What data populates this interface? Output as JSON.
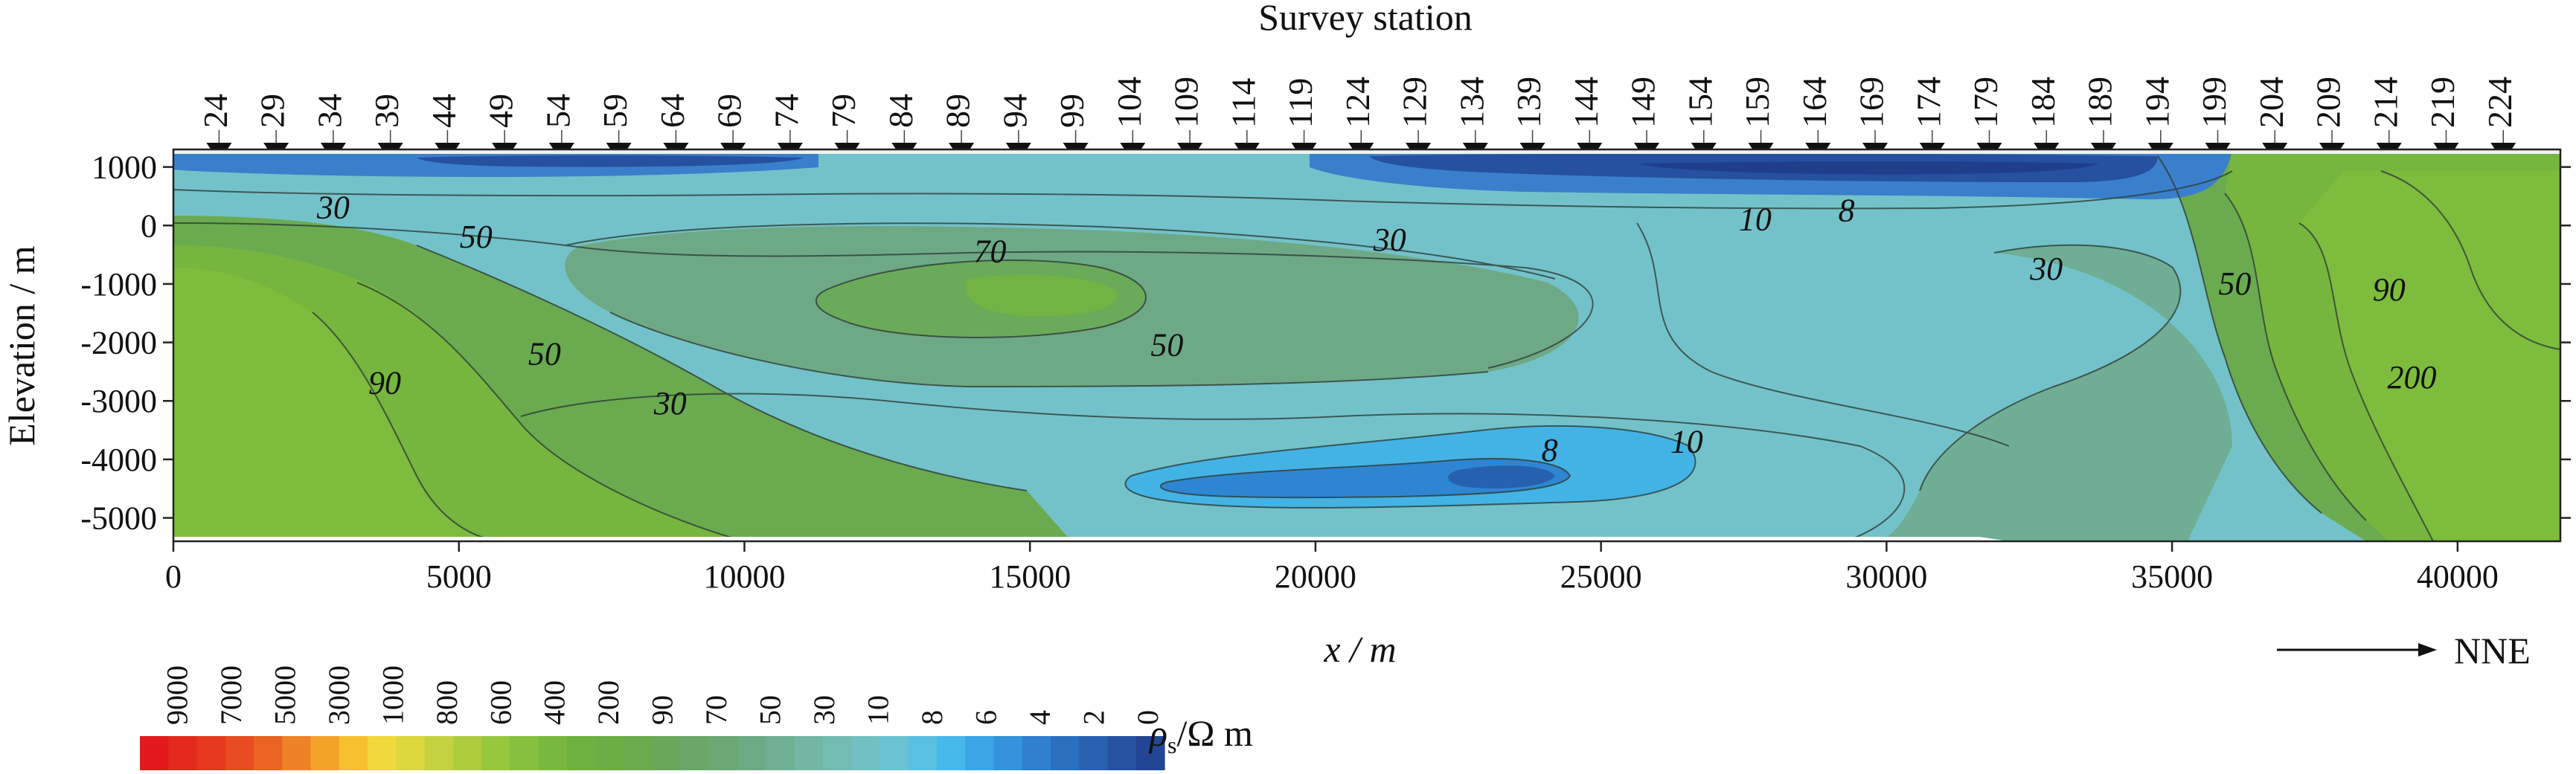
{
  "chart_data": {
    "type": "heatmap",
    "title": "Survey station",
    "xlabel": "x / m",
    "ylabel": "Elevation / m",
    "xlim": [
      0,
      41800
    ],
    "ylim": [
      -5400,
      1300
    ],
    "x_ticks": [
      0,
      5000,
      10000,
      15000,
      20000,
      25000,
      30000,
      35000,
      40000
    ],
    "y_ticks": [
      1000,
      0,
      -1000,
      -2000,
      -3000,
      -4000,
      -5000
    ],
    "direction_label": "NNE",
    "stations": [
      {
        "label": "24",
        "x": 800
      },
      {
        "label": "29",
        "x": 1800
      },
      {
        "label": "34",
        "x": 2800
      },
      {
        "label": "39",
        "x": 3800
      },
      {
        "label": "44",
        "x": 4800
      },
      {
        "label": "49",
        "x": 5800
      },
      {
        "label": "54",
        "x": 6800
      },
      {
        "label": "59",
        "x": 7800
      },
      {
        "label": "64",
        "x": 8800
      },
      {
        "label": "69",
        "x": 9800
      },
      {
        "label": "74",
        "x": 10800
      },
      {
        "label": "79",
        "x": 11800
      },
      {
        "label": "84",
        "x": 12800
      },
      {
        "label": "89",
        "x": 13800
      },
      {
        "label": "94",
        "x": 14800
      },
      {
        "label": "99",
        "x": 15800
      },
      {
        "label": "104",
        "x": 16800
      },
      {
        "label": "109",
        "x": 17800
      },
      {
        "label": "114",
        "x": 18800
      },
      {
        "label": "119",
        "x": 19800
      },
      {
        "label": "124",
        "x": 20800
      },
      {
        "label": "129",
        "x": 21800
      },
      {
        "label": "134",
        "x": 22800
      },
      {
        "label": "139",
        "x": 23800
      },
      {
        "label": "144",
        "x": 24800
      },
      {
        "label": "149",
        "x": 25800
      },
      {
        "label": "154",
        "x": 26800
      },
      {
        "label": "159",
        "x": 27800
      },
      {
        "label": "164",
        "x": 28800
      },
      {
        "label": "169",
        "x": 29800
      },
      {
        "label": "174",
        "x": 30800
      },
      {
        "label": "179",
        "x": 31800
      },
      {
        "label": "184",
        "x": 32800
      },
      {
        "label": "189",
        "x": 33800
      },
      {
        "label": "194",
        "x": 34800
      },
      {
        "label": "199",
        "x": 35800
      },
      {
        "label": "204",
        "x": 36800
      },
      {
        "label": "209",
        "x": 37800
      },
      {
        "label": "214",
        "x": 38800
      },
      {
        "label": "219",
        "x": 39800
      },
      {
        "label": "224",
        "x": 40800
      }
    ],
    "contour_labels": [
      {
        "text": "30",
        "x": 2800,
        "y": 300
      },
      {
        "text": "50",
        "x": 5300,
        "y": -200
      },
      {
        "text": "70",
        "x": 14300,
        "y": -450
      },
      {
        "text": "30",
        "x": 21300,
        "y": -250
      },
      {
        "text": "10",
        "x": 27700,
        "y": 100
      },
      {
        "text": "8",
        "x": 29300,
        "y": 250
      },
      {
        "text": "30",
        "x": 32800,
        "y": -750
      },
      {
        "text": "50",
        "x": 36100,
        "y": -1000
      },
      {
        "text": "90",
        "x": 38800,
        "y": -1100
      },
      {
        "text": "50",
        "x": 6500,
        "y": -2200
      },
      {
        "text": "50",
        "x": 17400,
        "y": -2050
      },
      {
        "text": "90",
        "x": 3700,
        "y": -2700
      },
      {
        "text": "30",
        "x": 8700,
        "y": -3050
      },
      {
        "text": "200",
        "x": 39200,
        "y": -2600
      },
      {
        "text": "10",
        "x": 26500,
        "y": -3700
      },
      {
        "text": "8",
        "x": 24100,
        "y": -3850
      }
    ],
    "colorbar": {
      "label": "ρs/Ω m",
      "ticks": [
        "9000",
        "7000",
        "5000",
        "3000",
        "1000",
        "800",
        "600",
        "400",
        "200",
        "90",
        "70",
        "50",
        "30",
        "10",
        "8",
        "6",
        "4",
        "2",
        "0"
      ],
      "colors": [
        "#e31a1c",
        "#e42a1f",
        "#e6391f",
        "#e84c20",
        "#ea6322",
        "#ee8226",
        "#f3a32a",
        "#f6c02e",
        "#f2d83a",
        "#dcd83e",
        "#c3d23e",
        "#aecd3e",
        "#98c63d",
        "#86c03d",
        "#78b93d",
        "#6eb13e",
        "#6cae44",
        "#6aab4e",
        "#69a85b",
        "#6aa768",
        "#6ba876",
        "#6caa84",
        "#6fb093",
        "#72b6a3",
        "#74bcb2",
        "#72c0c1",
        "#6ac3d2",
        "#5ac0e2",
        "#46b8ea",
        "#3aa6e6",
        "#3493da",
        "#2f80cd",
        "#2b6fbf",
        "#2960b0",
        "#2652a2",
        "#224594"
      ]
    }
  }
}
